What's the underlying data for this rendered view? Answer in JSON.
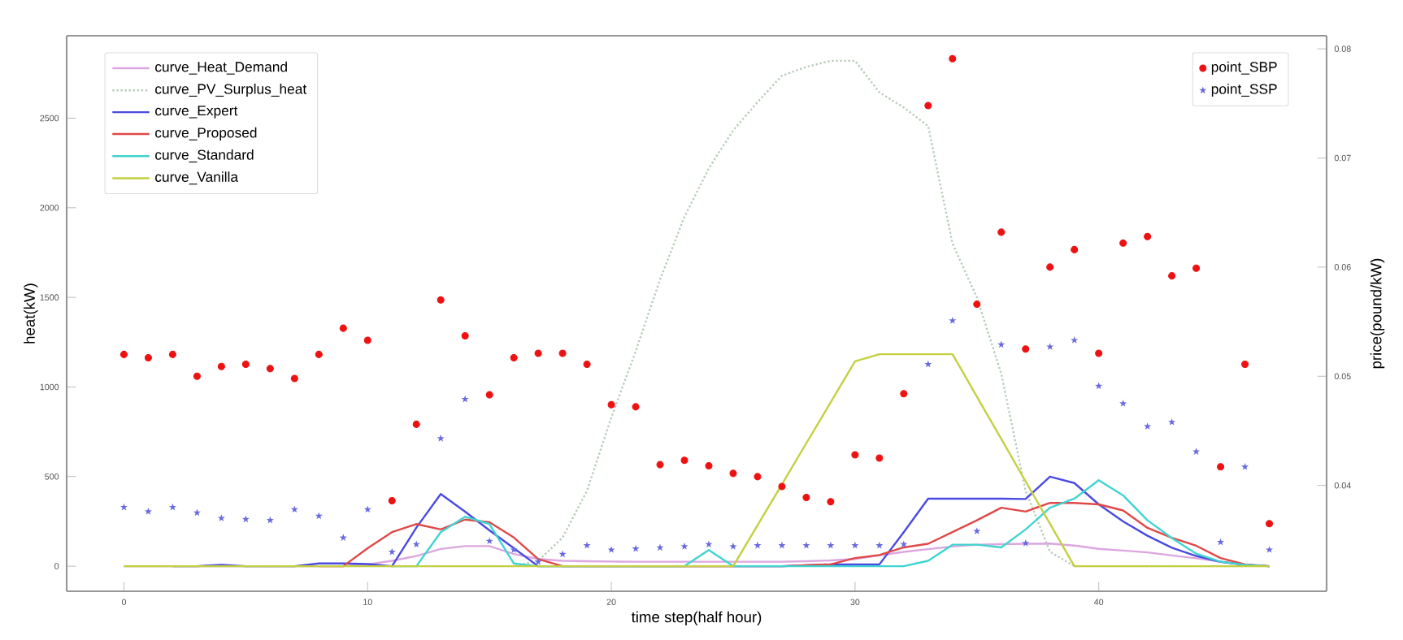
{
  "chart_data": {
    "type": "line",
    "xlabel": "time step(half hour)",
    "ylabel": "heat(kW)",
    "y2label": "price(pound/kW)",
    "x": [
      0,
      1,
      2,
      3,
      4,
      5,
      6,
      7,
      8,
      9,
      10,
      11,
      12,
      13,
      14,
      15,
      16,
      17,
      18,
      19,
      20,
      21,
      22,
      23,
      24,
      25,
      26,
      27,
      28,
      29,
      30,
      31,
      32,
      33,
      34,
      35,
      36,
      37,
      38,
      39,
      40,
      41,
      42,
      43,
      44,
      45,
      46,
      47
    ],
    "xlim": [
      -2.35,
      49.35
    ],
    "xticks": [
      0,
      10,
      20,
      30,
      40
    ],
    "ylim": [
      -140,
      2960
    ],
    "yticks": [
      0,
      500,
      1000,
      1500,
      2000,
      2500
    ],
    "y2lim": [
      0.0303,
      0.0812
    ],
    "y2ticks": [
      0.04,
      0.05,
      0.06,
      0.07,
      0.08
    ],
    "legend": "top left",
    "grid": false,
    "series": [
      {
        "name": "curve_Heat_Demand",
        "color": "#dca6e0",
        "line_style": "solid",
        "values": [
          0,
          0,
          0,
          0,
          0,
          0,
          0,
          0,
          0,
          0,
          10,
          30,
          57,
          96,
          112,
          112,
          68,
          40,
          30,
          28,
          26,
          25,
          25,
          25,
          25,
          25,
          25,
          25,
          28,
          32,
          40,
          60,
          80,
          95,
          110,
          120,
          123,
          125,
          126,
          115,
          97,
          87,
          77,
          60,
          44,
          25,
          10,
          0
        ]
      },
      {
        "name": "curve_PV_Surplus_heat",
        "color": "#b8cdb8",
        "line_style": "dotted",
        "values": [
          0,
          0,
          0,
          0,
          0,
          0,
          0,
          0,
          0,
          0,
          0,
          0,
          0,
          0,
          0,
          0,
          0,
          30,
          160,
          420,
          830,
          1200,
          1600,
          1950,
          2220,
          2432,
          2590,
          2737,
          2786,
          2820,
          2820,
          2644,
          2560,
          2456,
          1800,
          1500,
          1075,
          420,
          80,
          0,
          0,
          0,
          0,
          0,
          0,
          0,
          0,
          0
        ]
      },
      {
        "name": "curve_Expert",
        "color": "#4a4ae0",
        "line_style": "solid",
        "values": [
          null,
          null,
          0,
          0,
          8,
          0,
          0,
          0,
          15,
          15,
          12,
          0,
          215,
          403,
          304,
          200,
          100,
          0,
          0,
          0,
          0,
          0,
          0,
          0,
          0,
          0,
          0,
          0,
          5,
          10,
          10,
          10,
          190,
          377,
          377,
          377,
          377,
          375,
          500,
          464,
          345,
          250,
          170,
          103,
          57,
          24,
          8,
          0
        ]
      },
      {
        "name": "curve_Proposed",
        "color": "#e04848",
        "line_style": "solid",
        "values": [
          null,
          null,
          null,
          null,
          null,
          null,
          null,
          null,
          0,
          0,
          100,
          190,
          235,
          205,
          260,
          245,
          160,
          40,
          0,
          0,
          0,
          0,
          0,
          0,
          0,
          0,
          0,
          0,
          5,
          10,
          45,
          62,
          105,
          125,
          190,
          256,
          326,
          305,
          353,
          353,
          345,
          311,
          214,
          159,
          114,
          45,
          10,
          0
        ]
      },
      {
        "name": "curve_Standard",
        "color": "#40d4d0",
        "line_style": "solid",
        "values": [
          null,
          null,
          null,
          null,
          null,
          null,
          null,
          null,
          null,
          null,
          null,
          0,
          0,
          190,
          276,
          235,
          15,
          0,
          0,
          0,
          0,
          0,
          0,
          0,
          90,
          0,
          0,
          0,
          0,
          0,
          0,
          0,
          0,
          30,
          120,
          120,
          105,
          205,
          326,
          377,
          480,
          395,
          256,
          157,
          70,
          25,
          8,
          0
        ]
      },
      {
        "name": "curve_Vanilla",
        "color": "#c4d040",
        "line_style": "solid",
        "values": [
          0,
          0,
          0,
          0,
          0,
          0,
          0,
          0,
          0,
          0,
          0,
          0,
          0,
          0,
          0,
          0,
          0,
          0,
          0,
          0,
          0,
          0,
          0,
          0,
          0,
          0,
          229,
          457,
          686,
          914,
          1143,
          1183,
          1183,
          1183,
          1183,
          946,
          710,
          473,
          237,
          0,
          0,
          0,
          0,
          0,
          0,
          0,
          0,
          0
        ]
      },
      {
        "name": "point_SBP",
        "type": "scatter",
        "axis": "y2",
        "marker": "circle",
        "color": "#ee1111",
        "values": [
          0.052,
          0.0517,
          0.052,
          0.05,
          0.0509,
          0.0511,
          0.0507,
          0.0498,
          0.052,
          0.0544,
          0.0533,
          0.0386,
          0.0456,
          0.057,
          0.0537,
          0.0483,
          0.0517,
          0.0521,
          0.0521,
          0.0511,
          0.0474,
          0.0472,
          0.0419,
          0.0423,
          0.0418,
          0.0411,
          0.0408,
          0.0399,
          0.0389,
          0.0385,
          0.0428,
          0.0425,
          0.0484,
          0.0748,
          0.0791,
          0.0566,
          0.0632,
          0.0525,
          0.06,
          0.0616,
          0.0521,
          0.0622,
          0.0628,
          0.0592,
          0.0599,
          0.0417,
          0.0511,
          0.0365
        ]
      },
      {
        "name": "point_SSP",
        "type": "scatter",
        "axis": "y2",
        "marker": "star",
        "color": "#6a6ae0",
        "values": [
          0.038,
          0.0376,
          0.038,
          0.0375,
          0.037,
          0.0369,
          0.0368,
          0.0378,
          0.0372,
          0.0352,
          0.0378,
          0.0339,
          0.0346,
          0.0443,
          0.0479,
          0.0349,
          0.0341,
          0.033,
          0.0337,
          0.0345,
          0.0341,
          0.0342,
          0.0343,
          0.0344,
          0.0346,
          0.0344,
          0.0345,
          0.0345,
          0.0345,
          0.0345,
          0.0345,
          0.0345,
          0.0346,
          0.0511,
          0.0551,
          0.0358,
          0.0529,
          0.0347,
          0.0527,
          0.0533,
          0.0491,
          0.0475,
          0.0454,
          0.0458,
          0.0431,
          0.0348,
          0.0417,
          0.0341
        ]
      }
    ]
  }
}
